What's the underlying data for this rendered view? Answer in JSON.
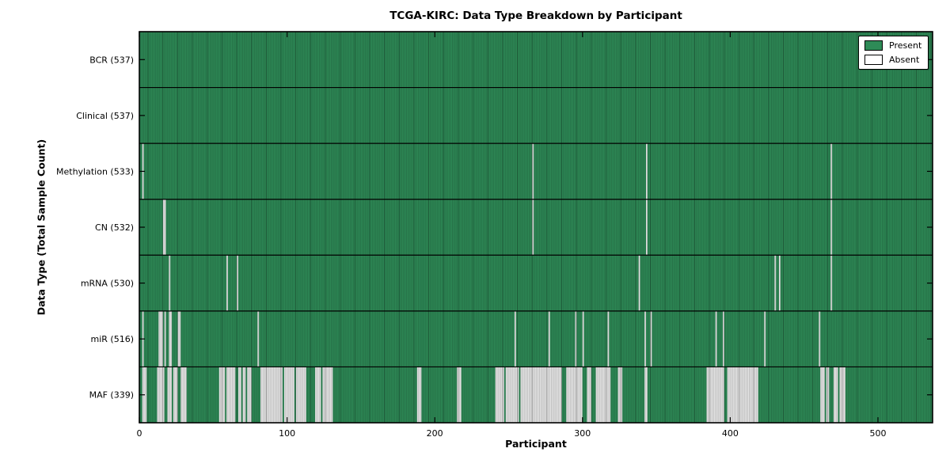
{
  "chart_data": {
    "type": "heatmap",
    "title": "TCGA-KIRC: Data Type Breakdown by Participant",
    "xlabel": "Participant",
    "ylabel": "Data Type (Total Sample Count)",
    "x_ticks": [
      0,
      100,
      200,
      300,
      400,
      500
    ],
    "xlim": [
      0,
      537
    ],
    "n_participants": 537,
    "grid": false,
    "legend_position": "upper right",
    "legend": [
      {
        "label": "Present",
        "color": "#2E8B57"
      },
      {
        "label": "Absent",
        "color": "#FFFFFF"
      }
    ],
    "colors": {
      "present": "#2E8B57",
      "absent_display": "#E9E9E9",
      "border": "#000000"
    },
    "rows": [
      {
        "label": "BCR (537)",
        "total": 537,
        "absent_count": 0,
        "absent_runs": []
      },
      {
        "label": "Clinical (537)",
        "total": 537,
        "absent_count": 0,
        "absent_runs": []
      },
      {
        "label": "Methylation (533)",
        "total": 533,
        "absent_count": 4,
        "absent_runs": [
          [
            2,
            2
          ],
          [
            266,
            266
          ],
          [
            343,
            343
          ],
          [
            468,
            468
          ]
        ]
      },
      {
        "label": "CN (532)",
        "total": 532,
        "absent_count": 5,
        "absent_runs": [
          [
            16,
            17
          ],
          [
            266,
            266
          ],
          [
            343,
            343
          ],
          [
            468,
            468
          ]
        ]
      },
      {
        "label": "mRNA (530)",
        "total": 530,
        "absent_count": 7,
        "absent_runs": [
          [
            20,
            20
          ],
          [
            59,
            59
          ],
          [
            66,
            66
          ],
          [
            338,
            338
          ],
          [
            430,
            430
          ],
          [
            433,
            433
          ],
          [
            468,
            468
          ]
        ]
      },
      {
        "label": "miR (516)",
        "total": 516,
        "absent_count": 21,
        "absent_runs": [
          [
            2,
            2
          ],
          [
            13,
            15
          ],
          [
            17,
            17
          ],
          [
            20,
            21
          ],
          [
            26,
            27
          ],
          [
            80,
            80
          ],
          [
            254,
            254
          ],
          [
            277,
            277
          ],
          [
            295,
            295
          ],
          [
            300,
            300
          ],
          [
            317,
            317
          ],
          [
            342,
            342
          ],
          [
            346,
            346
          ],
          [
            390,
            390
          ],
          [
            395,
            395
          ],
          [
            423,
            423
          ],
          [
            460,
            460
          ]
        ]
      },
      {
        "label": "MAF (339)",
        "total": 339,
        "absent_count": 198,
        "absent_runs": [
          [
            2,
            4
          ],
          [
            12,
            16
          ],
          [
            19,
            21
          ],
          [
            23,
            25
          ],
          [
            28,
            31
          ],
          [
            54,
            57
          ],
          [
            59,
            64
          ],
          [
            67,
            68
          ],
          [
            70,
            71
          ],
          [
            73,
            75
          ],
          [
            82,
            96
          ],
          [
            98,
            104
          ],
          [
            106,
            112
          ],
          [
            119,
            122
          ],
          [
            124,
            130
          ],
          [
            188,
            190
          ],
          [
            215,
            217
          ],
          [
            241,
            246
          ],
          [
            248,
            256
          ],
          [
            258,
            285
          ],
          [
            289,
            299
          ],
          [
            303,
            305
          ],
          [
            309,
            318
          ],
          [
            324,
            326
          ],
          [
            342,
            343
          ],
          [
            384,
            395
          ],
          [
            398,
            418
          ],
          [
            461,
            463
          ],
          [
            465,
            466
          ],
          [
            470,
            472
          ],
          [
            474,
            477
          ]
        ]
      }
    ]
  }
}
